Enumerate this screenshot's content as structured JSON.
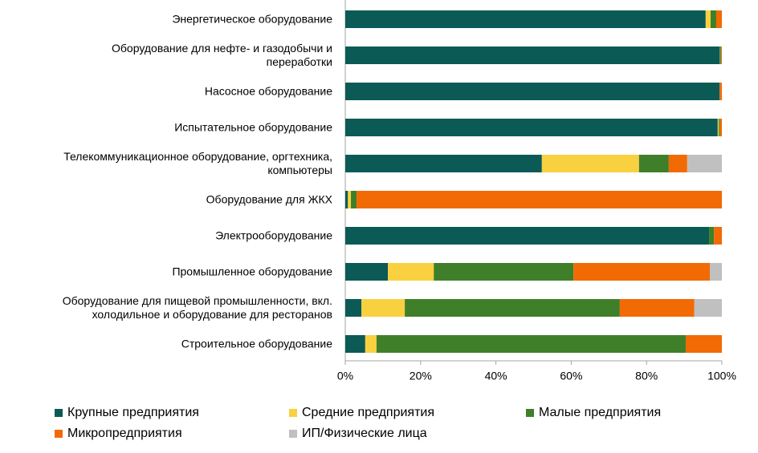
{
  "chart_data": {
    "type": "stacked-bar-horizontal",
    "categories": [
      "Энергетическое оборудование",
      "Оборудование для нефте- и газодобычи и\nпереработки",
      "Насосное оборудование",
      "Испытательное оборудование",
      "Телекоммуникационное  оборудование, оргтехника,\nкомпьютеры",
      "Оборудование для ЖКХ",
      "Электрооборудование",
      "Промышленное оборудование",
      "Оборудование для пищевой промышленности, вкл.\nхолодильное и оборудование для ресторанов",
      "Строительное оборудование"
    ],
    "series": [
      {
        "name": "Крупные предприятия",
        "color": "#0b5a55",
        "values": [
          95.7,
          99.5,
          99.4,
          98.9,
          52.2,
          0.7,
          96.6,
          11.3,
          4.3,
          5.3
        ]
      },
      {
        "name": "Средние предприятия",
        "color": "#f9d03f",
        "values": [
          1.3,
          0.1,
          0,
          0.3,
          25.8,
          0.8,
          0,
          12.2,
          11.5,
          3.0
        ]
      },
      {
        "name": "Малые предприятия",
        "color": "#3f7f2a",
        "values": [
          1.5,
          0.2,
          0,
          0.3,
          7.9,
          1.5,
          1.3,
          37.1,
          57.1,
          82.1
        ]
      },
      {
        "name": "Микропредприятия",
        "color": "#f26a04",
        "values": [
          1.5,
          0.2,
          0.6,
          0.5,
          4.9,
          97.0,
          2.1,
          36.2,
          19.8,
          9.6
        ]
      },
      {
        "name": "ИП/Физические лица",
        "color": "#c0c0c0",
        "values": [
          0,
          0,
          0,
          0,
          9.2,
          0,
          0,
          3.2,
          7.3,
          0
        ]
      }
    ],
    "xlim": [
      0,
      100
    ],
    "xticks": [
      {
        "value": 0,
        "label": "0%"
      },
      {
        "value": 20,
        "label": "20%"
      },
      {
        "value": 40,
        "label": "40%"
      },
      {
        "value": 60,
        "label": "60%"
      },
      {
        "value": 80,
        "label": "80%"
      },
      {
        "value": 100,
        "label": "100%"
      }
    ]
  }
}
